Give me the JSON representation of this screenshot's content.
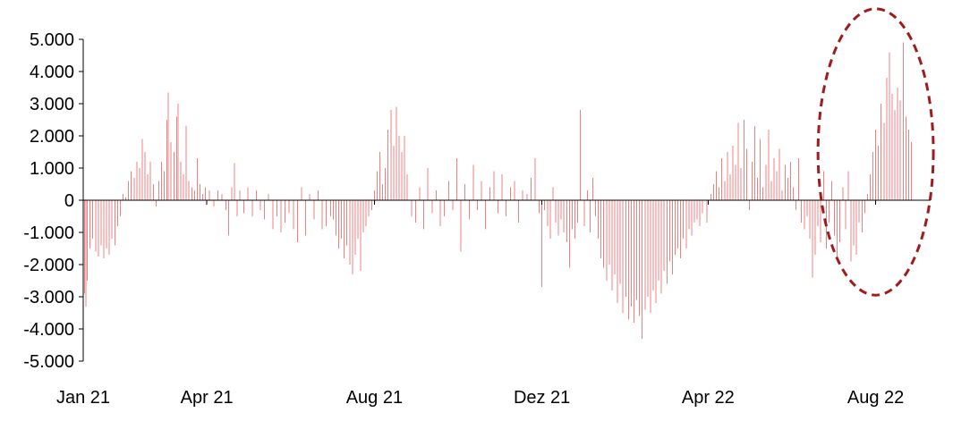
{
  "chart_data": {
    "type": "bar",
    "title": "",
    "xlabel": "",
    "ylabel": "",
    "ylim": [
      -5000,
      5000
    ],
    "y_ticks": [
      5000,
      4000,
      3000,
      2000,
      1000,
      0,
      -1000,
      -2000,
      -3000,
      -4000,
      -5000
    ],
    "y_tick_labels": [
      "5.000",
      "4.000",
      "3.000",
      "2.000",
      "1.000",
      "0",
      "-1.000",
      "-2.000",
      "-3.000",
      "-4.000",
      "-5.000"
    ],
    "x_range": [
      "2021-01-01",
      "2022-09-10"
    ],
    "x_ticks": [
      "2021-01-01",
      "2021-04-01",
      "2021-08-01",
      "2021-12-01",
      "2022-04-01",
      "2022-08-01"
    ],
    "x_tick_labels": [
      "Jan 21",
      "Apr 21",
      "Aug 21",
      "Dez 21",
      "Apr 22",
      "Aug 22"
    ],
    "grid": false,
    "bar_color": "#f08080",
    "annotation": {
      "shape": "dashed-ellipse",
      "color": "#a01c1c",
      "x_range": [
        "2022-06-20",
        "2022-09-12"
      ],
      "y_range": [
        -2950,
        5950
      ]
    },
    "series_points": [
      [
        "2021-01-02",
        -2900
      ],
      [
        "2021-01-03",
        -3300
      ],
      [
        "2021-01-04",
        -2500
      ],
      [
        "2021-01-06",
        -1500
      ],
      [
        "2021-01-08",
        -1200
      ],
      [
        "2021-01-10",
        -1600
      ],
      [
        "2021-01-12",
        -1750
      ],
      [
        "2021-01-14",
        -1400
      ],
      [
        "2021-01-16",
        -1800
      ],
      [
        "2021-01-18",
        -1500
      ],
      [
        "2021-01-20",
        -1700
      ],
      [
        "2021-01-22",
        -1200
      ],
      [
        "2021-01-24",
        -1400
      ],
      [
        "2021-01-26",
        -800
      ],
      [
        "2021-01-28",
        -500
      ],
      [
        "2021-01-30",
        200
      ],
      [
        "2021-02-01",
        100
      ],
      [
        "2021-02-03",
        600
      ],
      [
        "2021-02-05",
        900
      ],
      [
        "2021-02-07",
        700
      ],
      [
        "2021-02-09",
        1200
      ],
      [
        "2021-02-11",
        1000
      ],
      [
        "2021-02-13",
        1900
      ],
      [
        "2021-02-15",
        1500
      ],
      [
        "2021-02-17",
        800
      ],
      [
        "2021-02-19",
        1200
      ],
      [
        "2021-02-21",
        500
      ],
      [
        "2021-02-23",
        -200
      ],
      [
        "2021-02-25",
        600
      ],
      [
        "2021-02-27",
        1200
      ],
      [
        "2021-03-01",
        900
      ],
      [
        "2021-03-03",
        2500
      ],
      [
        "2021-03-04",
        3350
      ],
      [
        "2021-03-06",
        1800
      ],
      [
        "2021-03-08",
        1500
      ],
      [
        "2021-03-10",
        2600
      ],
      [
        "2021-03-11",
        3000
      ],
      [
        "2021-03-13",
        1200
      ],
      [
        "2021-03-15",
        800
      ],
      [
        "2021-03-17",
        2300
      ],
      [
        "2021-03-19",
        600
      ],
      [
        "2021-03-21",
        400
      ],
      [
        "2021-03-23",
        300
      ],
      [
        "2021-03-25",
        1300
      ],
      [
        "2021-03-27",
        500
      ],
      [
        "2021-03-29",
        200
      ],
      [
        "2021-03-31",
        400
      ],
      [
        "2021-04-03",
        300
      ],
      [
        "2021-04-06",
        -200
      ],
      [
        "2021-04-09",
        300
      ],
      [
        "2021-04-12",
        200
      ],
      [
        "2021-04-15",
        -300
      ],
      [
        "2021-04-17",
        -1100
      ],
      [
        "2021-04-19",
        400
      ],
      [
        "2021-04-21",
        1150
      ],
      [
        "2021-04-23",
        -500
      ],
      [
        "2021-04-25",
        300
      ],
      [
        "2021-04-28",
        -400
      ],
      [
        "2021-05-01",
        400
      ],
      [
        "2021-05-04",
        -500
      ],
      [
        "2021-05-07",
        300
      ],
      [
        "2021-05-10",
        -300
      ],
      [
        "2021-05-13",
        -600
      ],
      [
        "2021-05-16",
        200
      ],
      [
        "2021-05-19",
        -900
      ],
      [
        "2021-05-22",
        -500
      ],
      [
        "2021-05-25",
        -1000
      ],
      [
        "2021-05-28",
        -700
      ],
      [
        "2021-05-31",
        -400
      ],
      [
        "2021-06-03",
        -900
      ],
      [
        "2021-06-06",
        -1300
      ],
      [
        "2021-06-09",
        400
      ],
      [
        "2021-06-12",
        -1100
      ],
      [
        "2021-06-15",
        200
      ],
      [
        "2021-06-18",
        -600
      ],
      [
        "2021-06-21",
        300
      ],
      [
        "2021-06-24",
        -900
      ],
      [
        "2021-06-27",
        -800
      ],
      [
        "2021-06-30",
        -500
      ],
      [
        "2021-07-02",
        -600
      ],
      [
        "2021-07-04",
        -1100
      ],
      [
        "2021-07-06",
        -1500
      ],
      [
        "2021-07-08",
        -1200
      ],
      [
        "2021-07-10",
        -1800
      ],
      [
        "2021-07-12",
        -1400
      ],
      [
        "2021-07-14",
        -2000
      ],
      [
        "2021-07-16",
        -2300
      ],
      [
        "2021-07-18",
        -1700
      ],
      [
        "2021-07-20",
        -1200
      ],
      [
        "2021-07-22",
        -2200
      ],
      [
        "2021-07-24",
        -1000
      ],
      [
        "2021-07-26",
        -800
      ],
      [
        "2021-07-28",
        -500
      ],
      [
        "2021-07-30",
        -300
      ],
      [
        "2021-08-01",
        300
      ],
      [
        "2021-08-03",
        900
      ],
      [
        "2021-08-05",
        1500
      ],
      [
        "2021-08-07",
        500
      ],
      [
        "2021-08-09",
        1000
      ],
      [
        "2021-08-11",
        2200
      ],
      [
        "2021-08-13",
        2800
      ],
      [
        "2021-08-15",
        1700
      ],
      [
        "2021-08-17",
        2900
      ],
      [
        "2021-08-19",
        2000
      ],
      [
        "2021-08-21",
        1500
      ],
      [
        "2021-08-23",
        2000
      ],
      [
        "2021-08-25",
        800
      ],
      [
        "2021-08-28",
        -500
      ],
      [
        "2021-08-31",
        -700
      ],
      [
        "2021-09-03",
        400
      ],
      [
        "2021-09-06",
        -900
      ],
      [
        "2021-09-09",
        1000
      ],
      [
        "2021-09-12",
        -400
      ],
      [
        "2021-09-15",
        300
      ],
      [
        "2021-09-18",
        -800
      ],
      [
        "2021-09-21",
        -500
      ],
      [
        "2021-09-24",
        600
      ],
      [
        "2021-09-27",
        -300
      ],
      [
        "2021-09-30",
        1300
      ],
      [
        "2021-10-03",
        -1600
      ],
      [
        "2021-10-06",
        500
      ],
      [
        "2021-10-09",
        -600
      ],
      [
        "2021-10-12",
        1100
      ],
      [
        "2021-10-15",
        -300
      ],
      [
        "2021-10-18",
        600
      ],
      [
        "2021-10-21",
        -900
      ],
      [
        "2021-10-24",
        400
      ],
      [
        "2021-10-27",
        900
      ],
      [
        "2021-10-30",
        -400
      ],
      [
        "2021-11-02",
        800
      ],
      [
        "2021-11-05",
        -500
      ],
      [
        "2021-11-08",
        400
      ],
      [
        "2021-11-11",
        600
      ],
      [
        "2021-11-14",
        -700
      ],
      [
        "2021-11-17",
        300
      ],
      [
        "2021-11-20",
        200
      ],
      [
        "2021-11-23",
        700
      ],
      [
        "2021-11-26",
        1300
      ],
      [
        "2021-11-29",
        -400
      ],
      [
        "2021-12-01",
        -2700
      ],
      [
        "2021-12-03",
        -300
      ],
      [
        "2021-12-05",
        -800
      ],
      [
        "2021-12-07",
        -1200
      ],
      [
        "2021-12-09",
        400
      ],
      [
        "2021-12-11",
        -700
      ],
      [
        "2021-12-13",
        -1100
      ],
      [
        "2021-12-15",
        -600
      ],
      [
        "2021-12-17",
        -1000
      ],
      [
        "2021-12-19",
        -1300
      ],
      [
        "2021-12-21",
        -2100
      ],
      [
        "2021-12-23",
        -900
      ],
      [
        "2021-12-25",
        -1200
      ],
      [
        "2021-12-27",
        -700
      ],
      [
        "2021-12-29",
        2800
      ],
      [
        "2022-01-01",
        -800
      ],
      [
        "2022-01-03",
        300
      ],
      [
        "2022-01-05",
        -1000
      ],
      [
        "2022-01-07",
        700
      ],
      [
        "2022-01-09",
        -500
      ],
      [
        "2022-01-11",
        -1200
      ],
      [
        "2022-01-13",
        -1800
      ],
      [
        "2022-01-15",
        -2100
      ],
      [
        "2022-01-17",
        -2500
      ],
      [
        "2022-01-19",
        -2000
      ],
      [
        "2022-01-21",
        -2800
      ],
      [
        "2022-01-23",
        -2300
      ],
      [
        "2022-01-25",
        -3200
      ],
      [
        "2022-01-27",
        -2600
      ],
      [
        "2022-01-29",
        -3500
      ],
      [
        "2022-01-31",
        -3000
      ],
      [
        "2022-02-02",
        -3700
      ],
      [
        "2022-02-04",
        -3300
      ],
      [
        "2022-02-06",
        -3800
      ],
      [
        "2022-02-08",
        -3100
      ],
      [
        "2022-02-10",
        -3600
      ],
      [
        "2022-02-12",
        -4300
      ],
      [
        "2022-02-14",
        -3400
      ],
      [
        "2022-02-16",
        -3000
      ],
      [
        "2022-02-18",
        -3500
      ],
      [
        "2022-02-20",
        -2800
      ],
      [
        "2022-02-22",
        -3200
      ],
      [
        "2022-02-24",
        -2500
      ],
      [
        "2022-02-26",
        -2900
      ],
      [
        "2022-02-28",
        -2200
      ],
      [
        "2022-03-02",
        -2600
      ],
      [
        "2022-03-04",
        -1900
      ],
      [
        "2022-03-06",
        -2300
      ],
      [
        "2022-03-08",
        -1700
      ],
      [
        "2022-03-10",
        -1500
      ],
      [
        "2022-03-12",
        -1800
      ],
      [
        "2022-03-14",
        -1200
      ],
      [
        "2022-03-16",
        -1500
      ],
      [
        "2022-03-18",
        -900
      ],
      [
        "2022-03-20",
        -1100
      ],
      [
        "2022-03-22",
        -700
      ],
      [
        "2022-03-24",
        -600
      ],
      [
        "2022-03-26",
        -800
      ],
      [
        "2022-03-28",
        -400
      ],
      [
        "2022-03-31",
        -700
      ],
      [
        "2022-04-03",
        200
      ],
      [
        "2022-04-05",
        500
      ],
      [
        "2022-04-07",
        900
      ],
      [
        "2022-04-09",
        400
      ],
      [
        "2022-04-11",
        1300
      ],
      [
        "2022-04-13",
        600
      ],
      [
        "2022-04-15",
        1500
      ],
      [
        "2022-04-17",
        800
      ],
      [
        "2022-04-19",
        1700
      ],
      [
        "2022-04-21",
        1100
      ],
      [
        "2022-04-23",
        2400
      ],
      [
        "2022-04-25",
        1000
      ],
      [
        "2022-04-27",
        2500
      ],
      [
        "2022-04-29",
        1600
      ],
      [
        "2022-05-01",
        -300
      ],
      [
        "2022-05-03",
        1200
      ],
      [
        "2022-05-05",
        2300
      ],
      [
        "2022-05-07",
        700
      ],
      [
        "2022-05-09",
        1900
      ],
      [
        "2022-05-11",
        400
      ],
      [
        "2022-05-13",
        1100
      ],
      [
        "2022-05-15",
        2200
      ],
      [
        "2022-05-17",
        600
      ],
      [
        "2022-05-19",
        1300
      ],
      [
        "2022-05-21",
        900
      ],
      [
        "2022-05-23",
        1600
      ],
      [
        "2022-05-25",
        300
      ],
      [
        "2022-05-27",
        1100
      ],
      [
        "2022-05-29",
        700
      ],
      [
        "2022-05-31",
        1200
      ],
      [
        "2022-06-02",
        400
      ],
      [
        "2022-06-04",
        -300
      ],
      [
        "2022-06-06",
        1300
      ],
      [
        "2022-06-08",
        -700
      ],
      [
        "2022-06-10",
        -900
      ],
      [
        "2022-06-12",
        -500
      ],
      [
        "2022-06-14",
        -1200
      ],
      [
        "2022-06-16",
        -2400
      ],
      [
        "2022-06-18",
        -1700
      ],
      [
        "2022-06-20",
        -800
      ],
      [
        "2022-06-22",
        -1300
      ],
      [
        "2022-06-24",
        900
      ],
      [
        "2022-06-26",
        -1500
      ],
      [
        "2022-06-28",
        -700
      ],
      [
        "2022-06-30",
        600
      ],
      [
        "2022-07-02",
        -1100
      ],
      [
        "2022-07-04",
        -1800
      ],
      [
        "2022-07-06",
        -1300
      ],
      [
        "2022-07-08",
        400
      ],
      [
        "2022-07-10",
        -900
      ],
      [
        "2022-07-12",
        900
      ],
      [
        "2022-07-14",
        -1900
      ],
      [
        "2022-07-16",
        -1400
      ],
      [
        "2022-07-18",
        -1700
      ],
      [
        "2022-07-20",
        -700
      ],
      [
        "2022-07-22",
        -1000
      ],
      [
        "2022-07-24",
        -400
      ],
      [
        "2022-07-26",
        200
      ],
      [
        "2022-07-28",
        800
      ],
      [
        "2022-07-30",
        1500
      ],
      [
        "2022-08-01",
        2200
      ],
      [
        "2022-08-03",
        1700
      ],
      [
        "2022-08-05",
        3000
      ],
      [
        "2022-08-07",
        2400
      ],
      [
        "2022-08-09",
        3800
      ],
      [
        "2022-08-11",
        4600
      ],
      [
        "2022-08-13",
        3300
      ],
      [
        "2022-08-15",
        2800
      ],
      [
        "2022-08-17",
        3500
      ],
      [
        "2022-08-19",
        3100
      ],
      [
        "2022-08-21",
        4900
      ],
      [
        "2022-08-23",
        2600
      ],
      [
        "2022-08-25",
        2200
      ],
      [
        "2022-08-27",
        1800
      ]
    ]
  }
}
